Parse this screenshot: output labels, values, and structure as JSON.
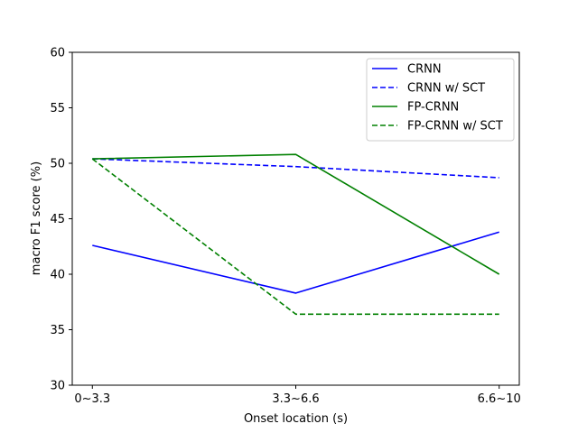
{
  "chart_data": {
    "type": "line",
    "categories": [
      "0~3.3",
      "3.3~6.6",
      "6.6~10"
    ],
    "xlabel": "Onset location (s)",
    "ylabel": "macro F1 score (%)",
    "ylim": [
      30,
      60
    ],
    "yticks": [
      30,
      35,
      40,
      45,
      50,
      55,
      60
    ],
    "grid": false,
    "legend_position": "top-right",
    "series": [
      {
        "name": "CRNN",
        "values": [
          42.6,
          38.3,
          43.8
        ],
        "color": "#0000ff",
        "style": "solid"
      },
      {
        "name": "CRNN w/ SCT",
        "values": [
          50.4,
          49.7,
          48.7
        ],
        "color": "#0000ff",
        "style": "dashed"
      },
      {
        "name": "FP-CRNN",
        "values": [
          50.4,
          50.8,
          40.0
        ],
        "color": "#008000",
        "style": "solid"
      },
      {
        "name": "FP-CRNN w/ SCT",
        "values": [
          50.4,
          36.4,
          36.4
        ],
        "color": "#008000",
        "style": "dashed"
      }
    ]
  }
}
